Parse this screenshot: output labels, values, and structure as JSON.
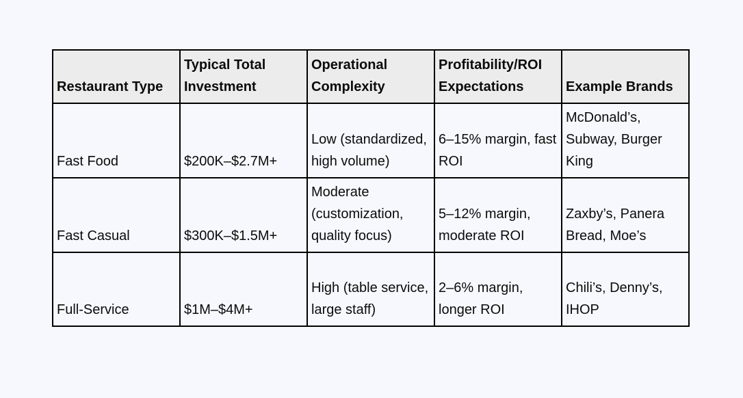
{
  "colors": {
    "page-bg": "#f7f8fd",
    "header-bg": "#ececec",
    "border": "#000000",
    "text": "#0b0b0b"
  },
  "chart_data": {
    "type": "table",
    "title": "",
    "columns": [
      "Restaurant Type",
      "Typical Total Investment",
      "Operational Complexity",
      "Profitability/ROI Expectations",
      "Example Brands"
    ],
    "rows": [
      {
        "cells": [
          "Fast Food",
          "$200K–$2.7M+",
          "Low (standardized, high volume)",
          "6–15% margin, fast ROI",
          "McDonald’s, Subway, Burger King"
        ]
      },
      {
        "cells": [
          "Fast Casual",
          "$300K–$1.5M+",
          "Moderate (customization, quality focus)",
          "5–12% margin, moderate ROI",
          "Zaxby’s, Panera Bread, Moe’s"
        ]
      },
      {
        "cells": [
          "Full-Service",
          "$1M–$4M+",
          "High (table service, large staff)",
          "2–6% margin, longer ROI",
          "Chili’s, Denny’s, IHOP"
        ]
      }
    ]
  }
}
